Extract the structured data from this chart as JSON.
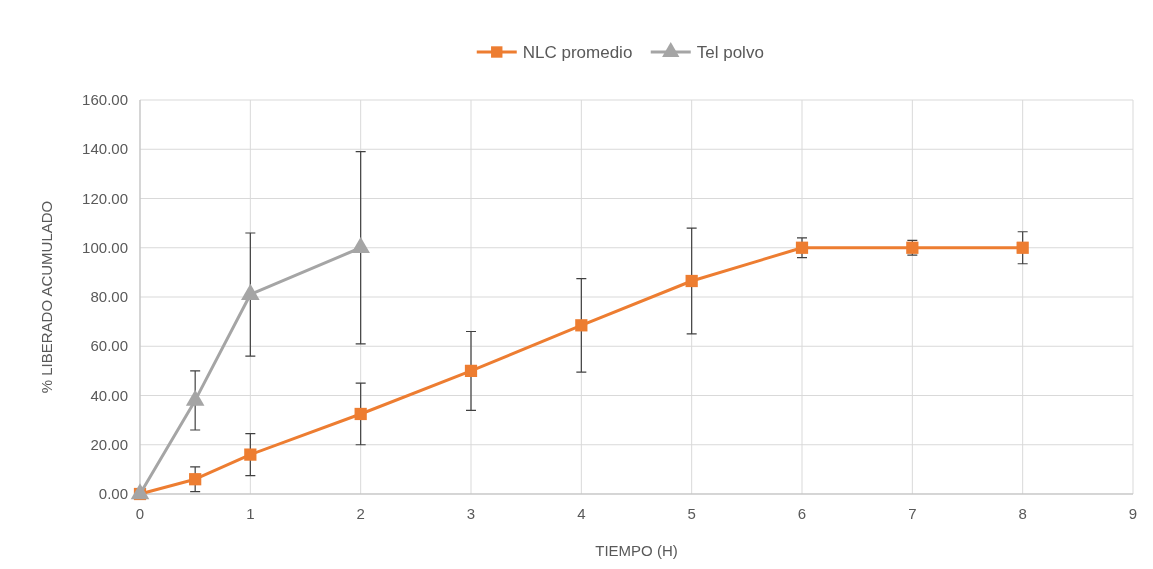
{
  "chart_data": {
    "type": "line",
    "xlabel": "TIEMPO (H)",
    "ylabel": "% LIBERADO ACUMULADO",
    "xlim": [
      0,
      9
    ],
    "xticks": [
      0,
      1,
      2,
      3,
      4,
      5,
      6,
      7,
      8,
      9
    ],
    "ylim": [
      0,
      160
    ],
    "yticks": [
      {
        "value": 0,
        "label": "0.00"
      },
      {
        "value": 20,
        "label": "20.00"
      },
      {
        "value": 40,
        "label": "40.00"
      },
      {
        "value": 60,
        "label": "60.00"
      },
      {
        "value": 80,
        "label": "80.00"
      },
      {
        "value": 100,
        "label": "100.00"
      },
      {
        "value": 120,
        "label": "120.00"
      },
      {
        "value": 140,
        "label": "140.00"
      },
      {
        "value": 160,
        "label": "160.00"
      }
    ],
    "grid": true,
    "legend": "top",
    "line_style": "solid",
    "series": [
      {
        "name": "NLC promedio",
        "color": "#ed7d31",
        "marker": "square",
        "x": [
          0,
          0.5,
          1,
          2,
          3,
          4,
          5,
          6,
          7,
          8
        ],
        "values": [
          0,
          6,
          16,
          32.5,
          50,
          68.5,
          86.5,
          100,
          100,
          100
        ],
        "errors": [
          null,
          5,
          8.5,
          12.5,
          16,
          19,
          21.5,
          4,
          3,
          6.5
        ]
      },
      {
        "name": "Tel polvo",
        "color": "#a5a5a5",
        "marker": "triangle",
        "x": [
          0,
          0.5,
          1,
          2
        ],
        "values": [
          0,
          38,
          81,
          100
        ],
        "errors": [
          null,
          12,
          25,
          39
        ]
      }
    ]
  }
}
